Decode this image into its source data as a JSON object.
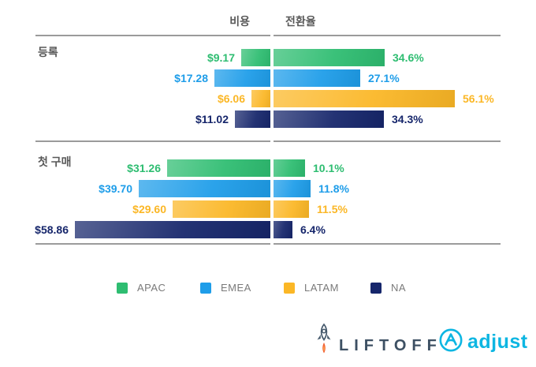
{
  "header": {
    "cost_label": "비용",
    "conversion_label": "전환율"
  },
  "chart_data": {
    "type": "bar",
    "orientation": "bidirectional-horizontal",
    "center_axis": "divides cost (left) and conversion rate (right)",
    "legend_position": "bottom",
    "grid": false,
    "colors": {
      "APAC": "#2EBD71",
      "EMEA": "#1E9DE9",
      "LATAM": "#FBB726",
      "NA": "#16266B"
    },
    "legend": [
      "APAC",
      "EMEA",
      "LATAM",
      "NA"
    ],
    "groups": [
      {
        "label": "등록",
        "rows": [
          {
            "region": "APAC",
            "cost": "$9.17",
            "cost_value": 9.17,
            "conversion": "34.6%",
            "conversion_value": 34.6
          },
          {
            "region": "EMEA",
            "cost": "$17.28",
            "cost_value": 17.28,
            "conversion": "27.1%",
            "conversion_value": 27.1
          },
          {
            "region": "LATAM",
            "cost": "$6.06",
            "cost_value": 6.06,
            "conversion": "56.1%",
            "conversion_value": 56.1
          },
          {
            "region": "NA",
            "cost": "$11.02",
            "cost_value": 11.02,
            "conversion": "34.3%",
            "conversion_value": 34.3
          }
        ]
      },
      {
        "label": "첫 구매",
        "rows": [
          {
            "region": "APAC",
            "cost": "$31.26",
            "cost_value": 31.26,
            "conversion": "10.1%",
            "conversion_value": 10.1
          },
          {
            "region": "EMEA",
            "cost": "$39.70",
            "cost_value": 39.7,
            "conversion": "11.8%",
            "conversion_value": 11.8
          },
          {
            "region": "LATAM",
            "cost": "$29.60",
            "cost_value": 29.6,
            "conversion": "11.5%",
            "conversion_value": 11.5
          },
          {
            "region": "NA",
            "cost": "$58.86",
            "cost_value": 58.86,
            "conversion": "6.4%",
            "conversion_value": 6.4
          }
        ]
      }
    ]
  },
  "footer": {
    "liftoff_text": "LIFTOFF",
    "adjust_text": "adjust",
    "liftoff_color": "#3d5063",
    "adjust_color": "#0db6e2"
  }
}
